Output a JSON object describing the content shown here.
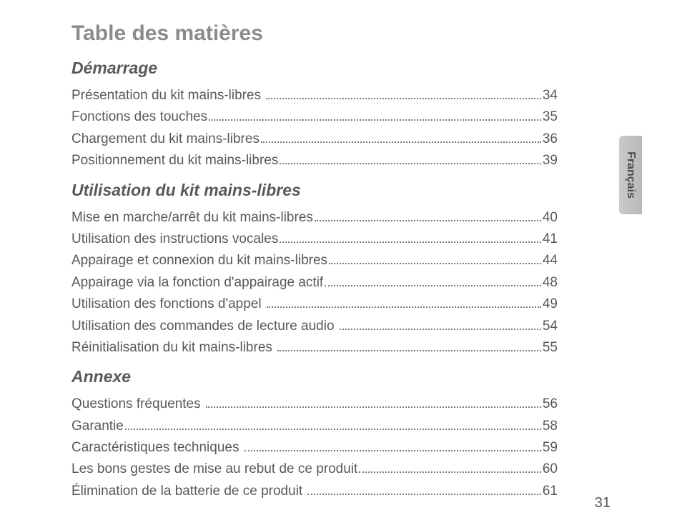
{
  "page": {
    "title": "Table des matières",
    "language_tab": "Français",
    "page_number": "31",
    "title_color": "#8a8b8d",
    "heading_color": "#58595b",
    "text_color": "#58595b",
    "tab_bg_start": "#c9cacb",
    "tab_bg_end": "#b7b8ba",
    "title_fontsize": 30,
    "heading_fontsize": 23,
    "entry_fontsize": 19
  },
  "sections": [
    {
      "heading": "Démarrage",
      "entries": [
        {
          "label": "Présentation du kit mains-libres",
          "page": "34"
        },
        {
          "label": "Fonctions des touches",
          "page": "35"
        },
        {
          "label": "Chargement du kit mains-libres",
          "page": "36"
        },
        {
          "label": "Positionnement du kit mains-libres",
          "page": "39"
        }
      ]
    },
    {
      "heading": "Utilisation du kit mains-libres",
      "entries": [
        {
          "label": "Mise en marche/arrêt du kit mains-libres",
          "page": "40"
        },
        {
          "label": "Utilisation des instructions vocales",
          "page": "41"
        },
        {
          "label": "Appairage et connexion du kit mains-libres",
          "page": "44"
        },
        {
          "label": "Appairage via la fonction d'appairage actif",
          "page": "48"
        },
        {
          "label": "Utilisation des fonctions d'appel",
          "page": "49"
        },
        {
          "label": "Utilisation des commandes de lecture audio",
          "page": "54"
        },
        {
          "label": "Réinitialisation du kit mains-libres",
          "page": "55"
        }
      ]
    },
    {
      "heading": "Annexe",
      "entries": [
        {
          "label": "Questions fréquentes",
          "page": "56"
        },
        {
          "label": "Garantie",
          "page": "58"
        },
        {
          "label": "Caractéristiques techniques",
          "page": "59"
        },
        {
          "label": "Les bons gestes de mise au rebut de ce produit",
          "page": "60"
        },
        {
          "label": "Élimination de la batterie de ce produit",
          "page": "61"
        }
      ]
    }
  ]
}
